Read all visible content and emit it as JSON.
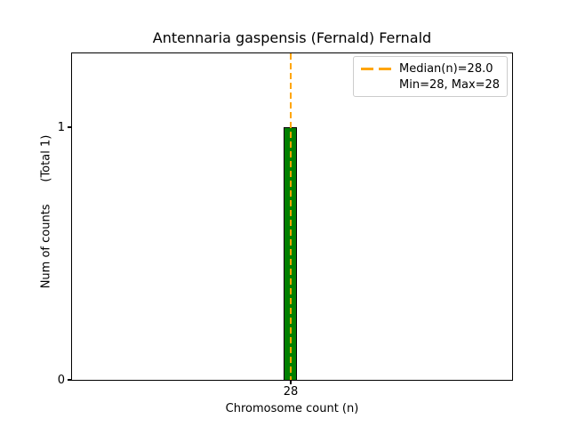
{
  "chart_data": {
    "type": "bar",
    "title": "Antennaria gaspensis (Fernald) Fernald",
    "xlabel": "Chromosome count (n)",
    "ylabel": "Num of counts      (Total 1)",
    "total_counts": 1,
    "categories": [
      28
    ],
    "values": [
      1
    ],
    "x_tick_labels": [
      "28"
    ],
    "y_tick_labels": [
      "0",
      "1"
    ],
    "ylim": [
      0,
      1.3
    ],
    "grid": false,
    "bar_color": "#008000",
    "bar_edge_color": "#000000",
    "median_line": {
      "value": 28.0,
      "color": "#FFA500",
      "style": "dashed",
      "orientation": "vertical"
    },
    "stats": {
      "median": 28.0,
      "min": 28,
      "max": 28
    },
    "legend": {
      "position": "upper right",
      "entries": [
        {
          "label": "Median(n)=28.0",
          "symbol": "dashed-line",
          "color": "#FFA500"
        },
        {
          "label": "Min=28, Max=28",
          "symbol": "none"
        }
      ]
    }
  }
}
